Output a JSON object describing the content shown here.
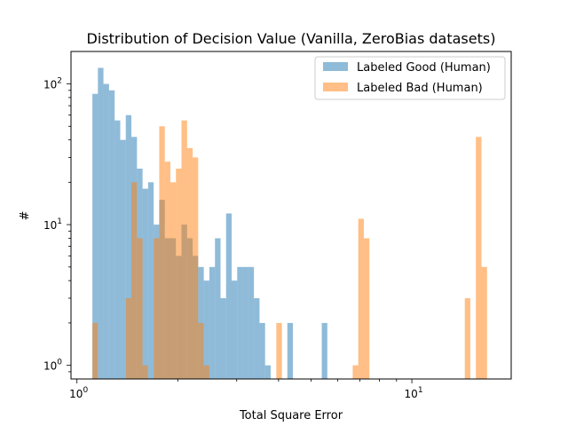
{
  "chart_data": {
    "type": "bar",
    "title": "Distribution of Decision Value (Vanilla, ZeroBias datasets)",
    "xlabel": "Total Square Error",
    "ylabel": "#",
    "xscale": "log",
    "yscale": "log",
    "xlim": [
      0.96,
      19.8
    ],
    "ylim": [
      0.8,
      170
    ],
    "x_ticks": [
      {
        "value": 1,
        "label": "10",
        "exp": "0"
      },
      {
        "value": 10,
        "label": "10",
        "exp": "1"
      }
    ],
    "y_ticks": [
      {
        "value": 1,
        "label": "10",
        "exp": "0"
      },
      {
        "value": 10,
        "label": "10",
        "exp": "1"
      },
      {
        "value": 100,
        "label": "10",
        "exp": "2"
      }
    ],
    "legend_position": "top-right",
    "series": [
      {
        "name": "Labeled Good (Human)",
        "color": "#1f77b4",
        "bins": [
          {
            "x0": 1.112,
            "x1": 1.155,
            "y": 85
          },
          {
            "x0": 1.155,
            "x1": 1.2,
            "y": 130
          },
          {
            "x0": 1.2,
            "x1": 1.247,
            "y": 100
          },
          {
            "x0": 1.247,
            "x1": 1.296,
            "y": 90
          },
          {
            "x0": 1.296,
            "x1": 1.347,
            "y": 55
          },
          {
            "x0": 1.347,
            "x1": 1.399,
            "y": 40
          },
          {
            "x0": 1.399,
            "x1": 1.454,
            "y": 60
          },
          {
            "x0": 1.454,
            "x1": 1.511,
            "y": 42
          },
          {
            "x0": 1.511,
            "x1": 1.57,
            "y": 25
          },
          {
            "x0": 1.57,
            "x1": 1.631,
            "y": 18
          },
          {
            "x0": 1.631,
            "x1": 1.695,
            "y": 20
          },
          {
            "x0": 1.695,
            "x1": 1.761,
            "y": 10
          },
          {
            "x0": 1.761,
            "x1": 1.83,
            "y": 15
          },
          {
            "x0": 1.83,
            "x1": 1.901,
            "y": 8
          },
          {
            "x0": 1.901,
            "x1": 1.975,
            "y": 8
          },
          {
            "x0": 1.975,
            "x1": 2.052,
            "y": 6
          },
          {
            "x0": 2.052,
            "x1": 2.133,
            "y": 10
          },
          {
            "x0": 2.133,
            "x1": 2.216,
            "y": 8
          },
          {
            "x0": 2.216,
            "x1": 2.302,
            "y": 6
          },
          {
            "x0": 2.302,
            "x1": 2.392,
            "y": 5
          },
          {
            "x0": 2.392,
            "x1": 2.486,
            "y": 4
          },
          {
            "x0": 2.486,
            "x1": 2.583,
            "y": 5
          },
          {
            "x0": 2.583,
            "x1": 2.684,
            "y": 8
          },
          {
            "x0": 2.684,
            "x1": 2.788,
            "y": 3
          },
          {
            "x0": 2.788,
            "x1": 2.897,
            "y": 12
          },
          {
            "x0": 2.897,
            "x1": 3.01,
            "y": 4
          },
          {
            "x0": 3.01,
            "x1": 3.128,
            "y": 5
          },
          {
            "x0": 3.128,
            "x1": 3.25,
            "y": 5
          },
          {
            "x0": 3.25,
            "x1": 3.377,
            "y": 5
          },
          {
            "x0": 3.377,
            "x1": 3.509,
            "y": 3
          },
          {
            "x0": 3.509,
            "x1": 3.646,
            "y": 2
          },
          {
            "x0": 3.646,
            "x1": 3.788,
            "y": 1
          },
          {
            "x0": 4.249,
            "x1": 4.415,
            "y": 2
          },
          {
            "x0": 5.383,
            "x1": 5.593,
            "y": 2
          }
        ]
      },
      {
        "name": "Labeled Bad (Human)",
        "color": "#ff7f0e",
        "bins": [
          {
            "x0": 1.112,
            "x1": 1.155,
            "y": 2
          },
          {
            "x0": 1.399,
            "x1": 1.454,
            "y": 3
          },
          {
            "x0": 1.454,
            "x1": 1.511,
            "y": 20
          },
          {
            "x0": 1.511,
            "x1": 1.57,
            "y": 8
          },
          {
            "x0": 1.57,
            "x1": 1.631,
            "y": 1
          },
          {
            "x0": 1.695,
            "x1": 1.761,
            "y": 8
          },
          {
            "x0": 1.761,
            "x1": 1.83,
            "y": 50
          },
          {
            "x0": 1.83,
            "x1": 1.901,
            "y": 28
          },
          {
            "x0": 1.901,
            "x1": 1.975,
            "y": 20
          },
          {
            "x0": 1.975,
            "x1": 2.052,
            "y": 25
          },
          {
            "x0": 2.052,
            "x1": 2.133,
            "y": 55
          },
          {
            "x0": 2.133,
            "x1": 2.216,
            "y": 35
          },
          {
            "x0": 2.216,
            "x1": 2.302,
            "y": 30
          },
          {
            "x0": 2.302,
            "x1": 2.392,
            "y": 2
          },
          {
            "x0": 2.392,
            "x1": 2.486,
            "y": 1
          },
          {
            "x0": 3.938,
            "x1": 4.092,
            "y": 2
          },
          {
            "x0": 6.659,
            "x1": 6.918,
            "y": 1
          },
          {
            "x0": 6.918,
            "x1": 7.188,
            "y": 11
          },
          {
            "x0": 7.188,
            "x1": 7.468,
            "y": 8
          },
          {
            "x0": 14.39,
            "x1": 14.95,
            "y": 3
          },
          {
            "x0": 15.53,
            "x1": 16.14,
            "y": 42
          },
          {
            "x0": 16.14,
            "x1": 16.77,
            "y": 5
          }
        ]
      }
    ]
  }
}
